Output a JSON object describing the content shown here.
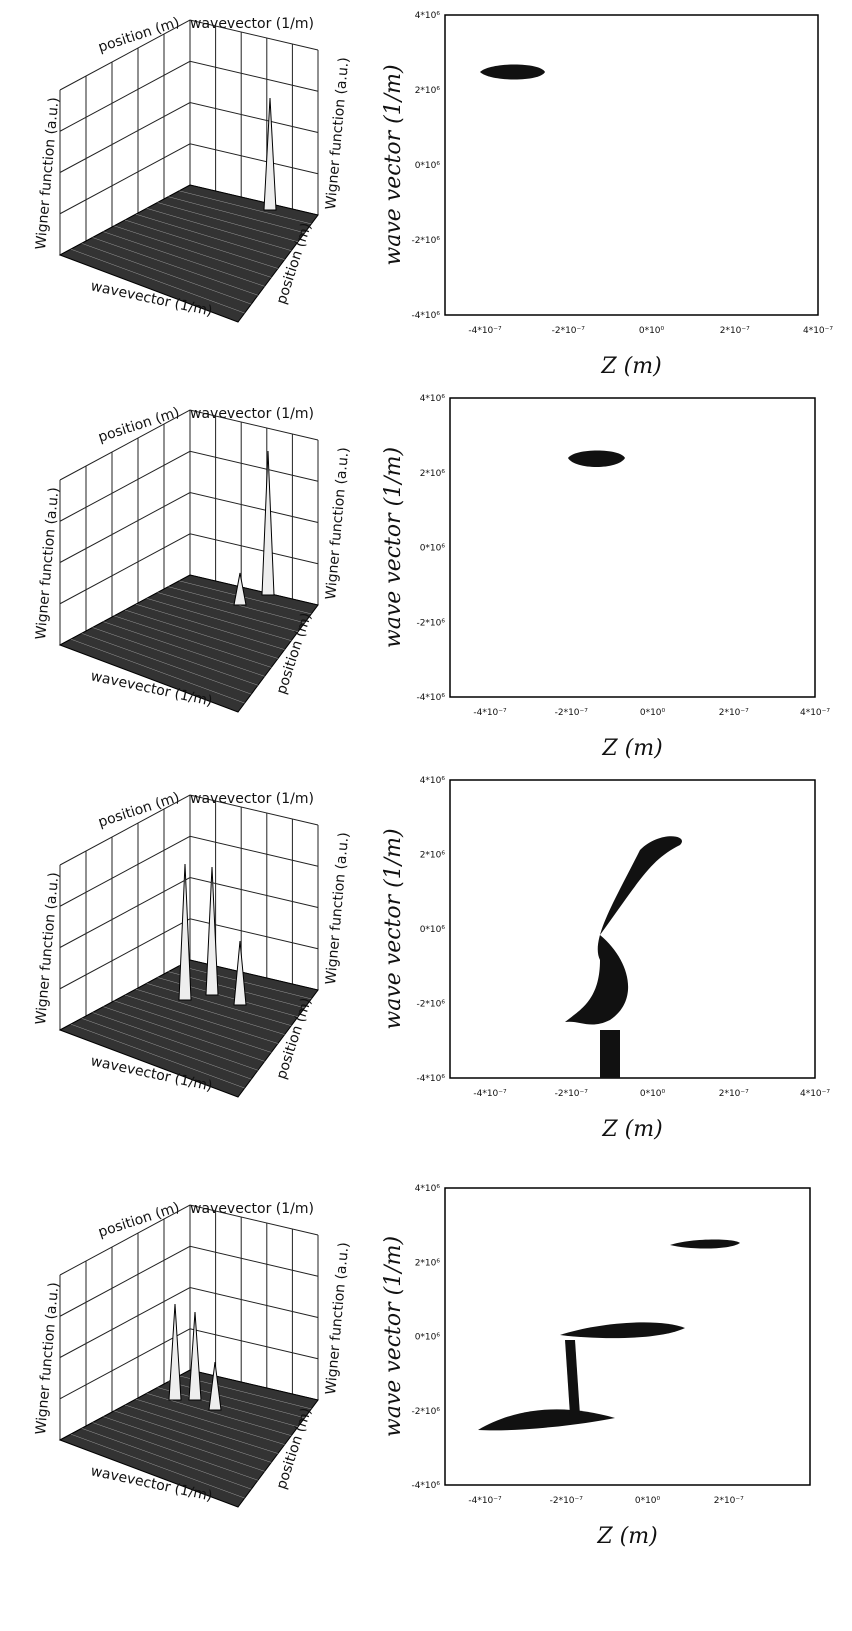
{
  "rows": [
    {
      "surface": {
        "position_top": "position (m)",
        "wavevector_top": "wavevector (1/m)",
        "wigner_left": "Wigner function (a.u.)",
        "wigner_right": "Wigner function (a.u.)",
        "wavevector_bottom": "wavevector (1/m)",
        "position_right": "position (m)"
      },
      "contour": {
        "ylabel": "wave vector (1/m)",
        "xlabel": "Z (m)",
        "yticks": [
          "4*10⁶",
          "2*10⁶",
          "0*10⁶",
          "-2*10⁶",
          "-4*10⁶"
        ],
        "xticks": [
          "-4*10⁻⁷",
          "-2*10⁻⁷",
          "0*10⁰",
          "2*10⁻⁷",
          "4*10⁻⁷"
        ]
      }
    },
    {
      "surface": {
        "position_top": "position (m)",
        "wavevector_top": "wavevector (1/m)",
        "wigner_left": "Wigner function (a.u.)",
        "wigner_right": "Wigner function (a.u.)",
        "wavevector_bottom": "wavevector (1/m)",
        "position_right": "position (m)"
      },
      "contour": {
        "ylabel": "wave vector (1/m)",
        "xlabel": "Z (m)",
        "yticks": [
          "4*10⁶",
          "2*10⁶",
          "0*10⁶",
          "-2*10⁶",
          "-4*10⁶"
        ],
        "xticks": [
          "-4*10⁻⁷",
          "-2*10⁻⁷",
          "0*10⁰",
          "2*10⁻⁷",
          "4*10⁻⁷"
        ]
      }
    },
    {
      "surface": {
        "position_top": "position (m)",
        "wavevector_top": "wavevector (1/m)",
        "wigner_left": "Wigner function (a.u.)",
        "wigner_right": "Wigner function (a.u.)",
        "wavevector_bottom": "wavevector (1/m)",
        "position_right": "position (m)"
      },
      "contour": {
        "ylabel": "wave vector (1/m)",
        "xlabel": "Z (m)",
        "yticks": [
          "4*10⁶",
          "2*10⁶",
          "0*10⁶",
          "-2*10⁶",
          "-4*10⁶"
        ],
        "xticks": [
          "-4*10⁻⁷",
          "-2*10⁻⁷",
          "0*10⁰",
          "2*10⁻⁷",
          "4*10⁻⁷"
        ]
      }
    },
    {
      "surface": {
        "position_top": "position (m)",
        "wavevector_top": "wavevector (1/m)",
        "wigner_left": "Wigner function (a.u.)",
        "wigner_right": "Wigner function (a.u.)",
        "wavevector_bottom": "wavevector (1/m)",
        "position_right": "position (m)"
      },
      "contour": {
        "ylabel": "wave vector (1/m)",
        "xlabel": "Z (m)",
        "yticks": [
          "4*10⁶",
          "2*10⁶",
          "0*10⁶",
          "-2*10⁶",
          "-4*10⁶"
        ],
        "xticks": [
          "-4*10⁻⁷",
          "-2*10⁻⁷",
          "0*10⁰",
          "2*10⁻⁷"
        ]
      }
    }
  ]
}
